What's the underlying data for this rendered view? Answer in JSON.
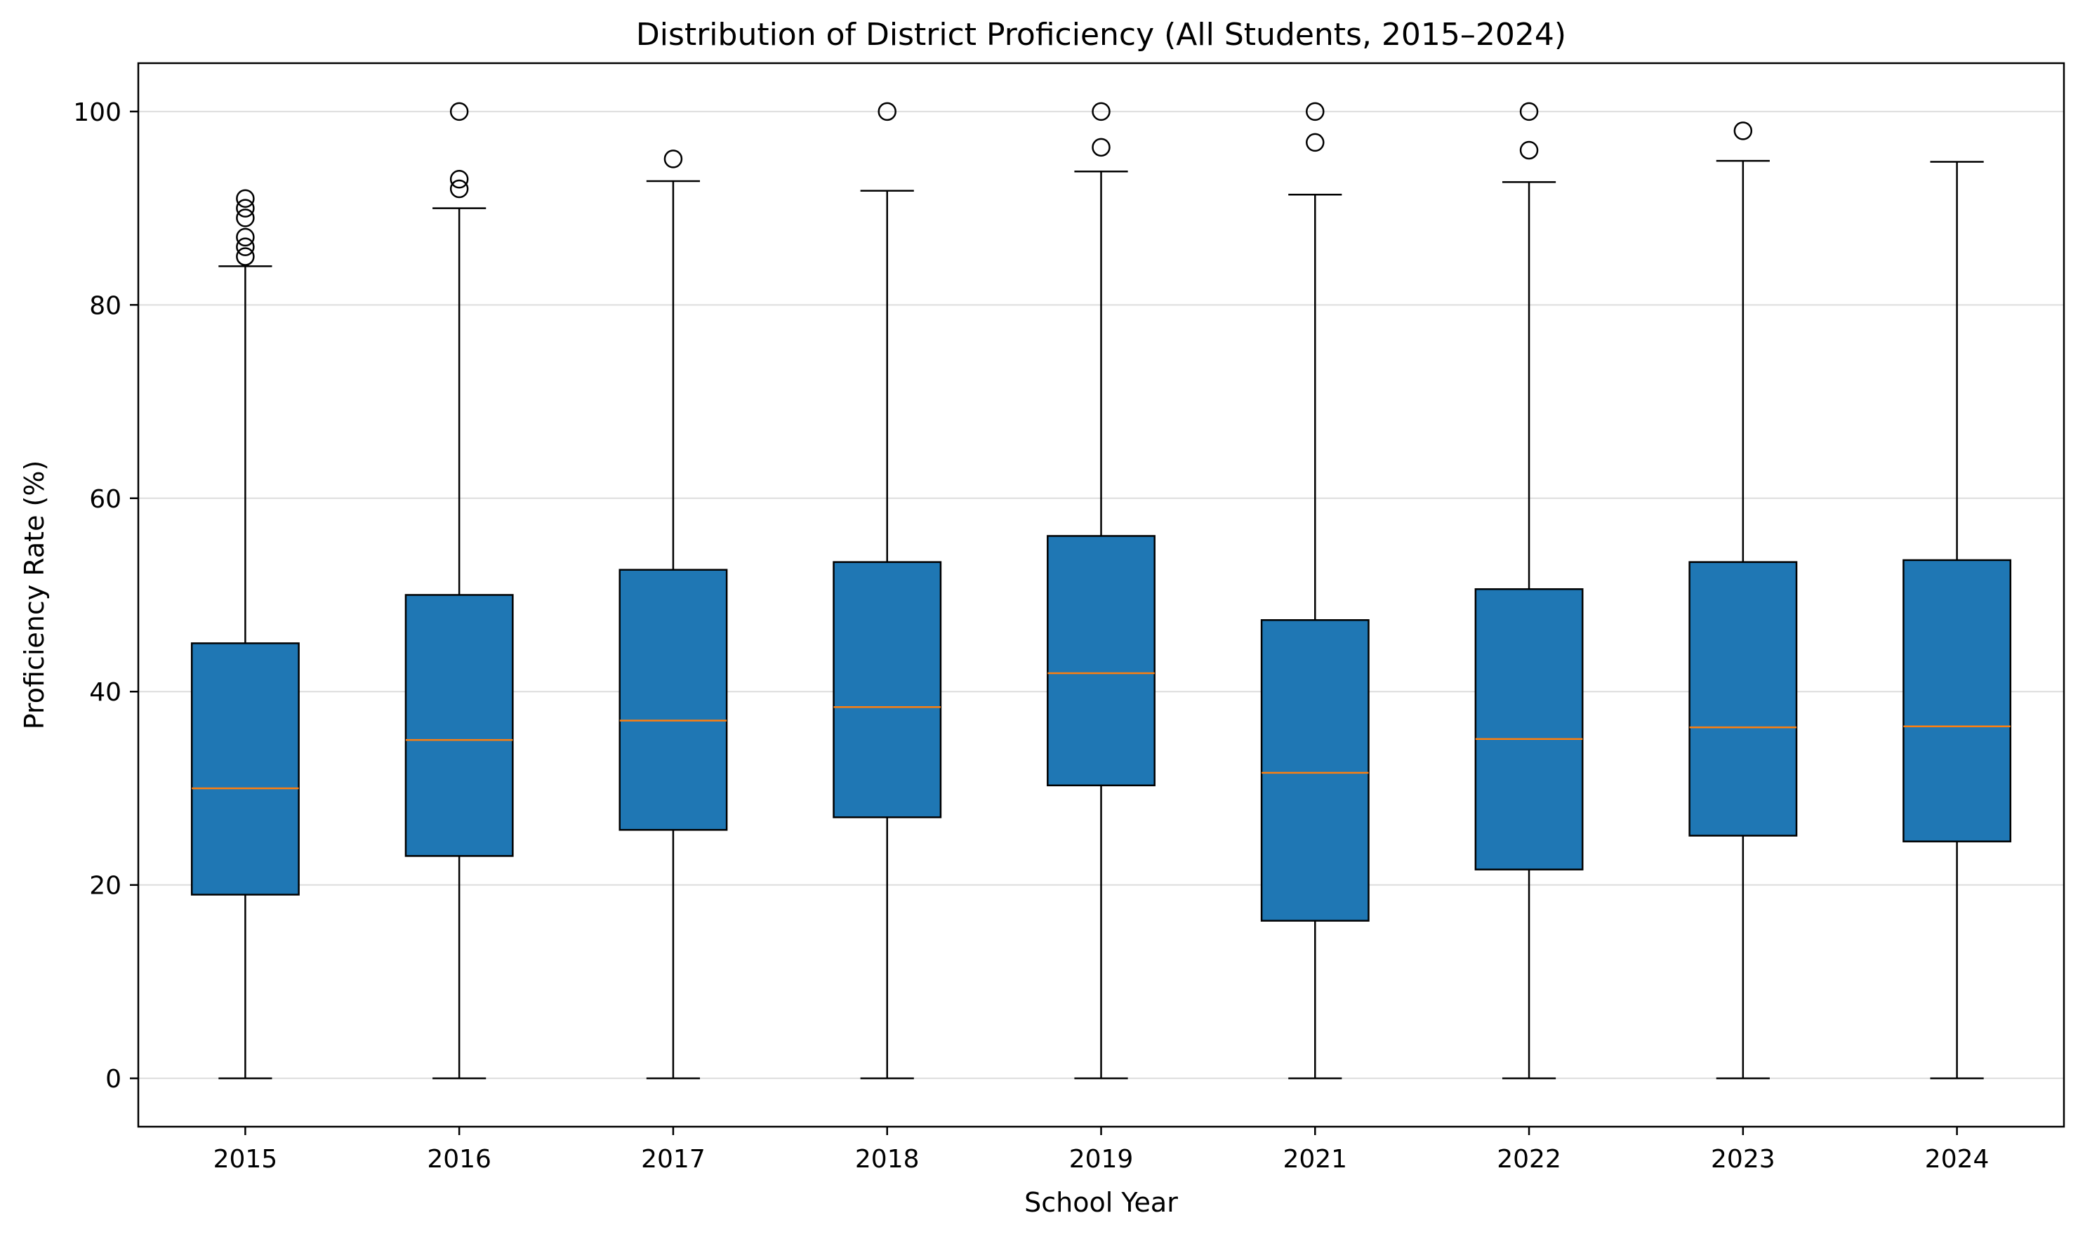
{
  "chart_data": {
    "type": "box",
    "title": "Distribution of District Proficiency (All Students, 2015–2024)",
    "xlabel": "School Year",
    "ylabel": "Proficiency Rate (%)",
    "ylim": [
      -5,
      105
    ],
    "yticks": [
      0,
      20,
      40,
      60,
      80,
      100
    ],
    "grid": "horizontal",
    "legend": "none",
    "categories": [
      "2015",
      "2016",
      "2017",
      "2018",
      "2019",
      "2021",
      "2022",
      "2023",
      "2024"
    ],
    "boxes": [
      {
        "category": "2015",
        "whisker_low": 0,
        "q1": 19.0,
        "median": 30.0,
        "q3": 45.0,
        "whisker_high": 84.0,
        "outliers": [
          85,
          86,
          87,
          89,
          90,
          91
        ]
      },
      {
        "category": "2016",
        "whisker_low": 0,
        "q1": 23.0,
        "median": 35.0,
        "q3": 50.0,
        "whisker_high": 90.0,
        "outliers": [
          92,
          93,
          100
        ]
      },
      {
        "category": "2017",
        "whisker_low": 0,
        "q1": 25.7,
        "median": 37.0,
        "q3": 52.6,
        "whisker_high": 92.8,
        "outliers": [
          95.1
        ]
      },
      {
        "category": "2018",
        "whisker_low": 0,
        "q1": 27.0,
        "median": 38.4,
        "q3": 53.4,
        "whisker_high": 91.8,
        "outliers": [
          100
        ]
      },
      {
        "category": "2019",
        "whisker_low": 0,
        "q1": 30.3,
        "median": 41.9,
        "q3": 56.1,
        "whisker_high": 93.8,
        "outliers": [
          96.3,
          100
        ]
      },
      {
        "category": "2021",
        "whisker_low": 0,
        "q1": 16.3,
        "median": 31.6,
        "q3": 47.4,
        "whisker_high": 91.4,
        "outliers": [
          96.8,
          100
        ]
      },
      {
        "category": "2022",
        "whisker_low": 0,
        "q1": 21.6,
        "median": 35.1,
        "q3": 50.6,
        "whisker_high": 92.7,
        "outliers": [
          96,
          100
        ]
      },
      {
        "category": "2023",
        "whisker_low": 0,
        "q1": 25.1,
        "median": 36.3,
        "q3": 53.4,
        "whisker_high": 94.9,
        "outliers": [
          98
        ]
      },
      {
        "category": "2024",
        "whisker_low": 0,
        "q1": 24.5,
        "median": 36.4,
        "q3": 53.6,
        "whisker_high": 94.8,
        "outliers": []
      }
    ],
    "colors": {
      "box_fill": "#1f77b4",
      "box_edge": "#000000",
      "median": "#ff7f0e",
      "grid": "#dddddd"
    }
  }
}
